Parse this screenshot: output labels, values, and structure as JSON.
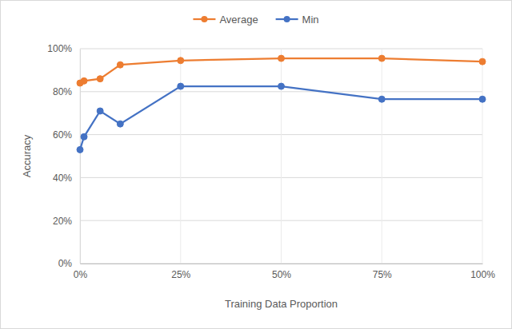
{
  "chart_data": {
    "type": "line",
    "x_label": "Training Data Proportion",
    "y_label": "Accuracy",
    "x": [
      0,
      1,
      5,
      10,
      25,
      50,
      75,
      100
    ],
    "series": [
      {
        "name": "Average",
        "color": "#ed7d31",
        "marker": "circle",
        "line_style": "solid",
        "values": [
          84,
          85,
          86,
          92.5,
          94.5,
          95.5,
          95.5,
          94
        ]
      },
      {
        "name": "Min",
        "color": "#4472c4",
        "marker": "circle",
        "line_style": "solid",
        "values": [
          53,
          59,
          71,
          65,
          82.5,
          82.5,
          76.5,
          76.5
        ]
      }
    ],
    "xlim": [
      0,
      100
    ],
    "xticks": [
      {
        "value": 0,
        "label": "0%"
      },
      {
        "value": 25,
        "label": "25%"
      },
      {
        "value": 50,
        "label": "50%"
      },
      {
        "value": 75,
        "label": "75%"
      },
      {
        "value": 100,
        "label": "100%"
      }
    ],
    "ylim": [
      0,
      100
    ],
    "yticks": [
      {
        "value": 0,
        "label": "0%"
      },
      {
        "value": 20,
        "label": "20%"
      },
      {
        "value": 40,
        "label": "40%"
      },
      {
        "value": 60,
        "label": "60%"
      },
      {
        "value": 80,
        "label": "80%"
      },
      {
        "value": 100,
        "label": "100%"
      }
    ],
    "grid": true,
    "legend": "top"
  }
}
